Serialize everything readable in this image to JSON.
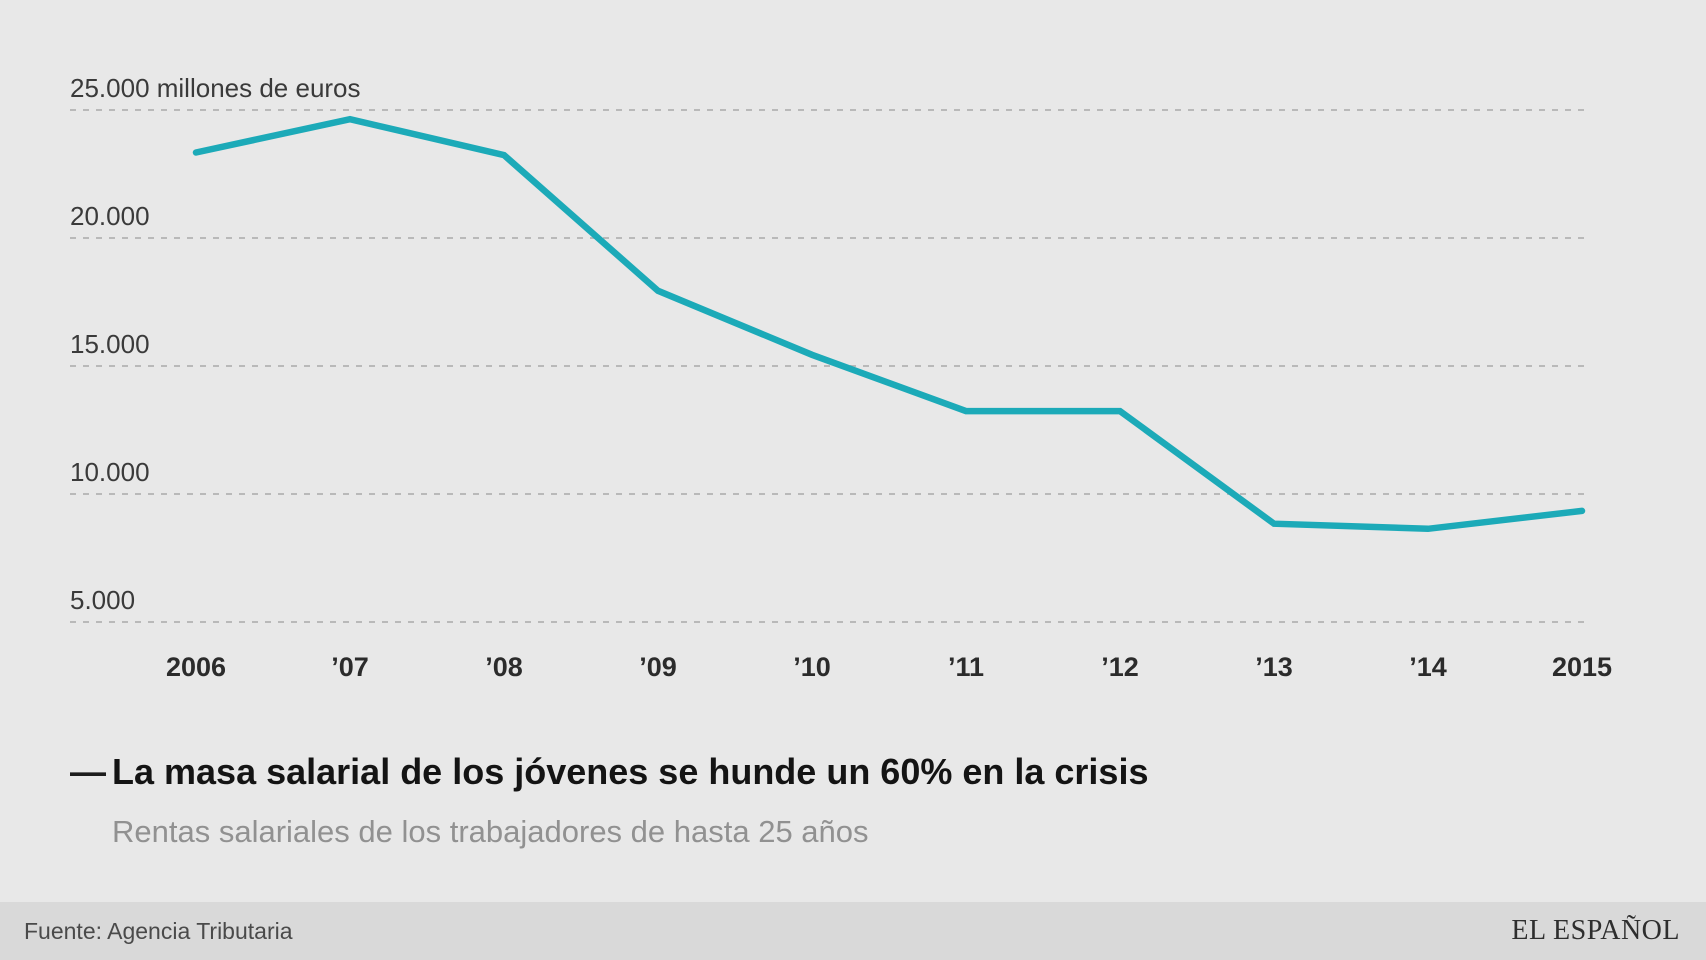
{
  "chart_data": {
    "type": "line",
    "x": [
      "2006",
      "’07",
      "’08",
      "’09",
      "’10",
      "’11",
      "’12",
      "’13",
      "’14",
      "2015"
    ],
    "values": [
      23300,
      24600,
      23200,
      17900,
      15400,
      13200,
      13200,
      8800,
      8600,
      9300
    ],
    "series_name": "Rentas salariales de los trabajadores de hasta 25 años",
    "title": "La masa salarial de los jóvenes se hunde un 60% en la crisis",
    "subtitle": "Rentas salariales de los trabajadores de hasta 25 años",
    "xlabel": "",
    "ylabel": "millones de euros",
    "y_ticks": [
      25000,
      20000,
      15000,
      10000,
      5000
    ],
    "y_tick_labels": [
      "25.000 millones de euros",
      "20.000",
      "15.000",
      "10.000",
      "5.000"
    ],
    "ylim": [
      5000,
      25000
    ],
    "grid": "dashed horizontal",
    "legend_position": "none",
    "line_color": "#1caab8"
  },
  "caption": {
    "dash": "—"
  },
  "footer": {
    "source": "Fuente: Agencia Tributaria",
    "brand": "EL ESPAÑOL"
  },
  "colors": {
    "background": "#e8e8e8",
    "footer_background": "#d9d9d9",
    "line": "#1caab8",
    "gridline": "#b9b9b9"
  }
}
